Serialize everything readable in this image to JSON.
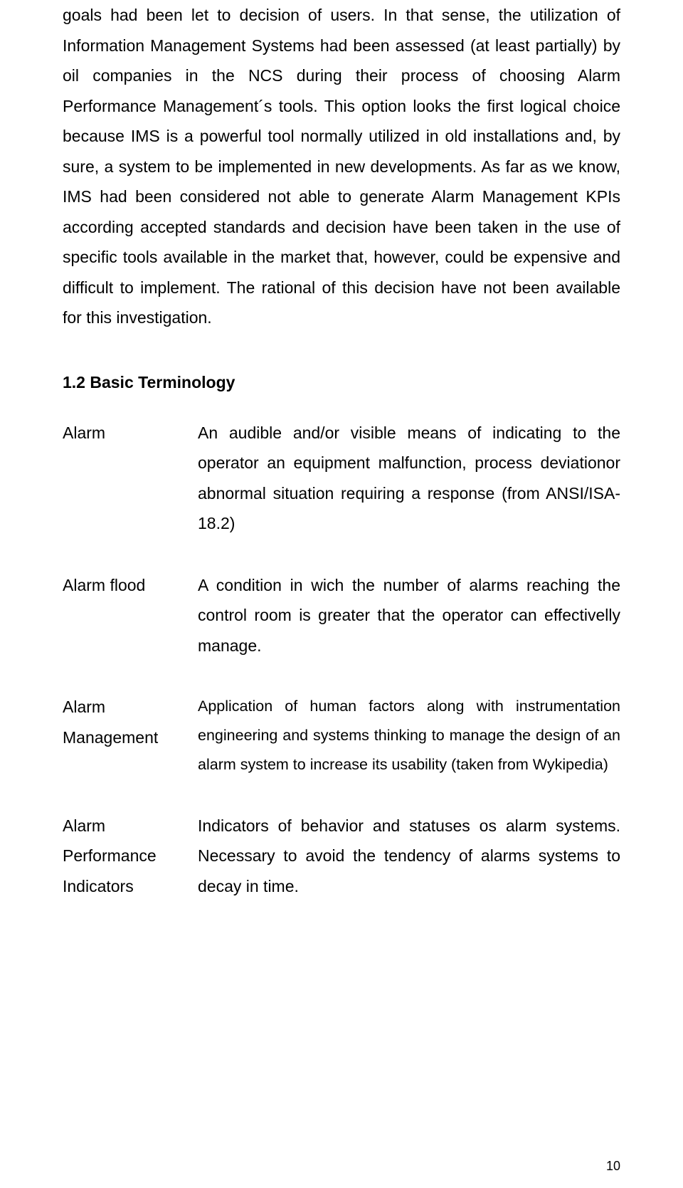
{
  "body_paragraph": "goals had been let to decision of users. In that sense, the utilization of Information Management Systems had been assessed (at least partially) by oil companies in the NCS during their process of choosing Alarm Performance Management´s tools. This option looks the first logical choice because IMS is a powerful tool normally utilized in old installations and, by sure, a system to be implemented in new developments. As far as we know, IMS had been considered not able to generate Alarm Management KPIs according accepted standards and decision have been taken in the use of specific tools available in the market that, however, could be expensive and difficult to implement. The rational of this decision have not been available for this investigation.",
  "section_heading": "1.2 Basic Terminology",
  "terms": [
    {
      "label": "Alarm",
      "definition": "An audible and/or visible means of indicating to the operator an equipment malfunction, process deviationor abnormal situation requiring a response (from ANSI/ISA-18.2)",
      "smaller": false
    },
    {
      "label": "Alarm flood",
      "definition": "A condition in wich the number of alarms reaching the control room is greater that the operator can effectivelly manage.",
      "smaller": false
    },
    {
      "label": "Alarm Management",
      "definition": "Application of human factors along with instrumentation engineering and systems thinking to manage the design of an alarm system to increase its usability  (taken from Wykipedia)",
      "smaller": true
    },
    {
      "label": "Alarm Performance Indicators",
      "definition": "Indicators of behavior and statuses os alarm systems. Necessary to avoid the tendency of alarms systems to decay in time.",
      "smaller": false
    }
  ],
  "page_number": "10"
}
